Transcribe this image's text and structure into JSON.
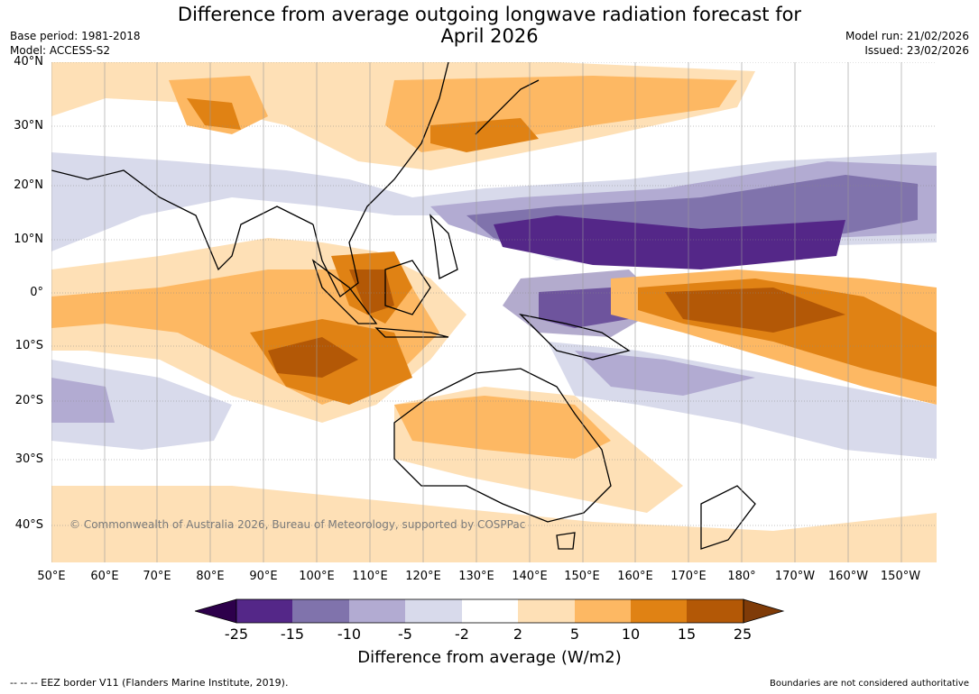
{
  "header": {
    "title_line1": "Difference from average outgoing longwave radiation forecast for",
    "title_line2": "April 2026",
    "base_period": "Base period: 1981-2018",
    "model": "Model: ACCESS-S2",
    "model_run": "Model run: 21/02/2026",
    "issued": "Issued: 23/02/2026"
  },
  "axes": {
    "lat_labels": [
      "40°N",
      "30°N",
      "20°N",
      "10°N",
      "0°",
      "10°S",
      "20°S",
      "30°S",
      "40°S"
    ],
    "lon_labels": [
      "50°E",
      "60°E",
      "70°E",
      "80°E",
      "90°E",
      "100°E",
      "110°E",
      "120°E",
      "130°E",
      "140°E",
      "150°E",
      "160°E",
      "170°E",
      "180°",
      "170°W",
      "160°W",
      "150°W"
    ]
  },
  "copyright": "© Commonwealth of Australia 2026, Bureau of Meteorology, supported by COSPPac",
  "legend": {
    "title": "Difference from average (W/m2)",
    "ticks": [
      "-25",
      "-15",
      "-10",
      "-5",
      "-2",
      "2",
      "5",
      "10",
      "15",
      "25"
    ],
    "colors": [
      "#2d004b",
      "#542788",
      "#8073ac",
      "#b2abd2",
      "#d8daeb",
      "#ffffff",
      "#fee0b6",
      "#fdb863",
      "#e08214",
      "#b35806",
      "#7f3b08"
    ]
  },
  "footer": {
    "eez_note": "--  --  -- EEZ border V11 (Flanders Marine Institute, 2019).",
    "disclaimer": "Boundaries are not considered authoritative"
  }
}
